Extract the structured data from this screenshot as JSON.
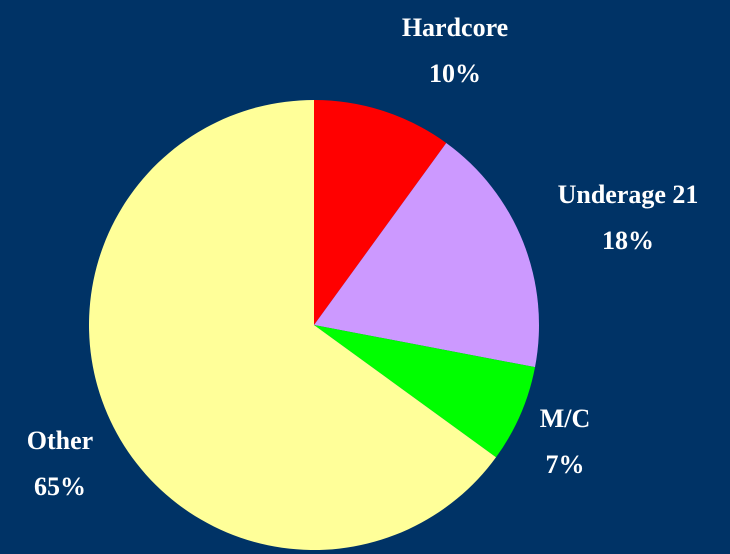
{
  "chart_data": {
    "type": "pie",
    "categories": [
      "Hardcore",
      "Underage 21",
      "M/C",
      "Other"
    ],
    "values": [
      10,
      18,
      7,
      65
    ],
    "value_labels": [
      "10%",
      "18%",
      "7%",
      "65%"
    ],
    "colors": [
      "#ff0000",
      "#cc99ff",
      "#00ff00",
      "#ffff99"
    ]
  }
}
